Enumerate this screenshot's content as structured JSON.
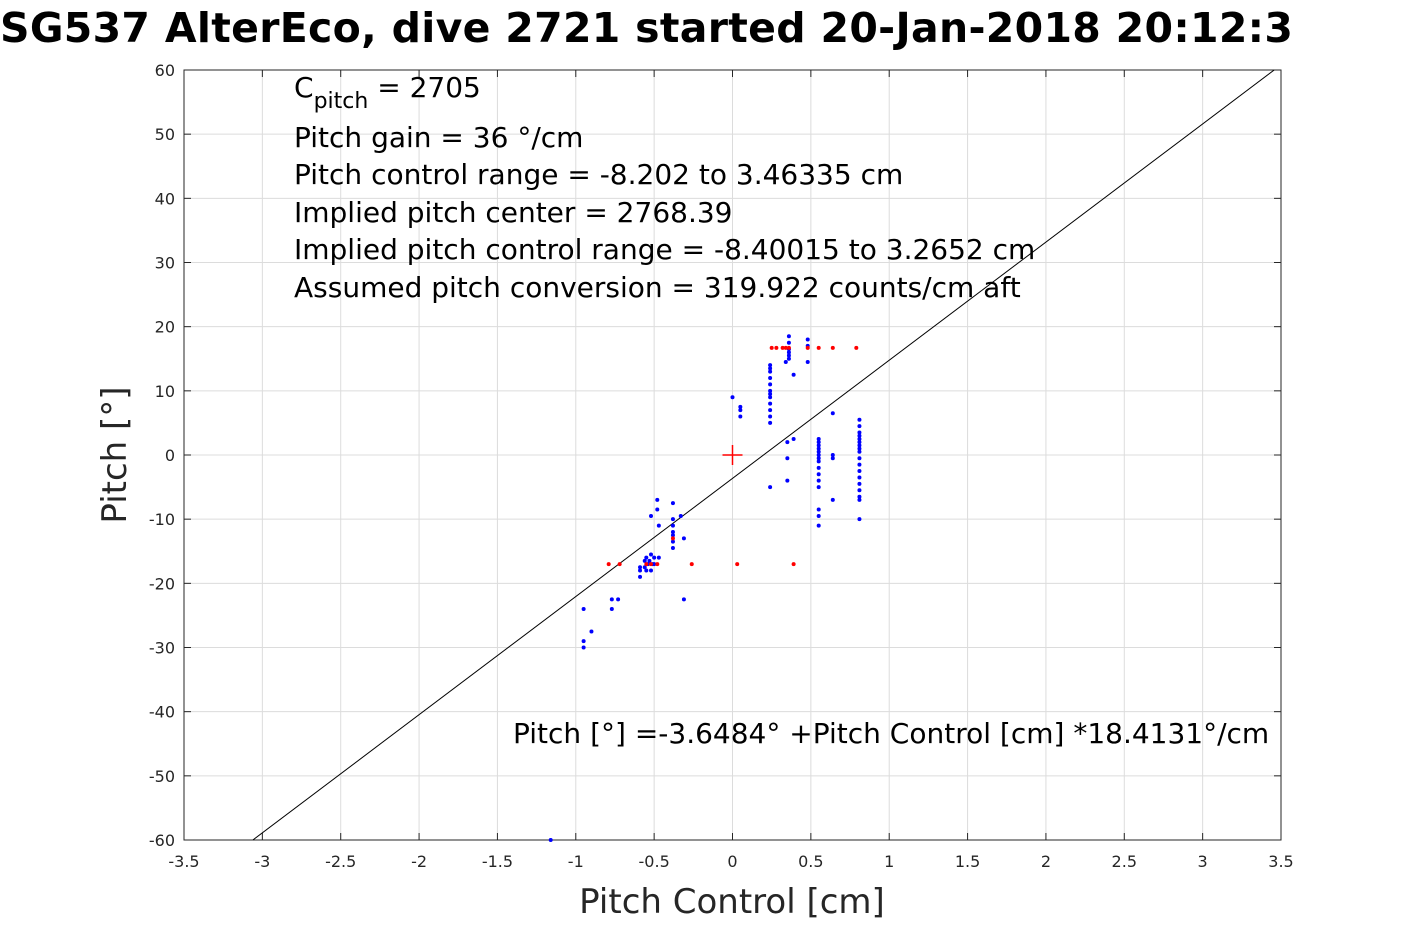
{
  "title": "SG537 AlterEco, dive 2721 started 20-Jan-2018 20:12:3",
  "annotations": {
    "cpitch_main": "C",
    "cpitch_sub": "pitch",
    "cpitch_value": " = 2705",
    "line2": "Pitch gain = 36 °/cm",
    "line3": "Pitch control range = -8.202 to 3.46335 cm",
    "line4": "Implied pitch center = 2768.39",
    "line5": "Implied pitch control range = -8.40015 to 3.2652 cm",
    "line6": "Assumed pitch conversion = 319.922 counts/cm aft"
  },
  "fit_equation": "Pitch [°] =-3.6484° +Pitch Control [cm] *18.4131°/cm",
  "chart_data": {
    "type": "scatter",
    "xlabel": "Pitch Control [cm]",
    "ylabel": "Pitch [°]",
    "xlim": [
      -3.5,
      3.5
    ],
    "ylim": [
      -60,
      60
    ],
    "xticks": [
      -3.5,
      -3,
      -2.5,
      -2,
      -1.5,
      -1,
      -0.5,
      0,
      0.5,
      1,
      1.5,
      2,
      2.5,
      3,
      3.5
    ],
    "xtick_labels": [
      "-3.5",
      "-3",
      "-2.5",
      "-2",
      "-1.5",
      "-1",
      "-0.5",
      "0",
      "0.5",
      "1",
      "1.5",
      "2",
      "2.5",
      "3",
      "3.5"
    ],
    "yticks": [
      -60,
      -50,
      -40,
      -30,
      -20,
      -10,
      0,
      10,
      20,
      30,
      40,
      50,
      60
    ],
    "ytick_labels": [
      "-60",
      "-50",
      "-40",
      "-30",
      "-20",
      "-10",
      "0",
      "10",
      "20",
      "30",
      "40",
      "50",
      "60"
    ],
    "grid": true,
    "fit_line": {
      "intercept": -3.6484,
      "slope": 18.4131
    },
    "center_marker": {
      "x": 0,
      "y": 0,
      "color": "#ff0000"
    },
    "series": [
      {
        "color": "#0000ff",
        "points": [
          [
            -1.16,
            -60
          ],
          [
            -0.95,
            -24
          ],
          [
            -0.95,
            -29
          ],
          [
            -0.95,
            -30
          ],
          [
            -0.9,
            -27.5
          ],
          [
            -0.77,
            -22.5
          ],
          [
            -0.77,
            -24
          ],
          [
            -0.73,
            -22.5
          ],
          [
            -0.59,
            -17.5
          ],
          [
            -0.59,
            -19
          ],
          [
            -0.59,
            -18
          ],
          [
            -0.56,
            -16.5
          ],
          [
            -0.56,
            -17.5
          ],
          [
            -0.55,
            -16
          ],
          [
            -0.55,
            -18
          ],
          [
            -0.54,
            -17
          ],
          [
            -0.53,
            -16.5
          ],
          [
            -0.52,
            -18
          ],
          [
            -0.52,
            -15.5
          ],
          [
            -0.51,
            -17
          ],
          [
            -0.5,
            -16
          ],
          [
            -0.5,
            -17
          ],
          [
            -0.52,
            -9.5
          ],
          [
            -0.48,
            -7
          ],
          [
            -0.48,
            -8.5
          ],
          [
            -0.47,
            -11
          ],
          [
            -0.47,
            -16
          ],
          [
            -0.38,
            -7.5
          ],
          [
            -0.38,
            -10
          ],
          [
            -0.38,
            -11
          ],
          [
            -0.38,
            -12
          ],
          [
            -0.38,
            -12.5
          ],
          [
            -0.38,
            -13.5
          ],
          [
            -0.38,
            -14.5
          ],
          [
            -0.33,
            -9.5
          ],
          [
            -0.31,
            -13
          ],
          [
            -0.31,
            -22.5
          ],
          [
            0,
            9
          ],
          [
            0.05,
            7.5
          ],
          [
            0.05,
            7
          ],
          [
            0.05,
            6
          ],
          [
            0.24,
            14
          ],
          [
            0.24,
            13.5
          ],
          [
            0.24,
            13
          ],
          [
            0.24,
            12
          ],
          [
            0.24,
            11
          ],
          [
            0.24,
            10
          ],
          [
            0.24,
            9.5
          ],
          [
            0.24,
            9
          ],
          [
            0.24,
            8
          ],
          [
            0.24,
            7
          ],
          [
            0.24,
            6
          ],
          [
            0.24,
            5
          ],
          [
            0.24,
            -5
          ],
          [
            0.34,
            14.5
          ],
          [
            0.35,
            -4
          ],
          [
            0.35,
            -0.5
          ],
          [
            0.35,
            2
          ],
          [
            0.36,
            18.5
          ],
          [
            0.36,
            17.5
          ],
          [
            0.36,
            16.5
          ],
          [
            0.36,
            16
          ],
          [
            0.36,
            15.5
          ],
          [
            0.36,
            15
          ],
          [
            0.39,
            12.5
          ],
          [
            0.39,
            2.5
          ],
          [
            0.48,
            18
          ],
          [
            0.48,
            17
          ],
          [
            0.48,
            14.5
          ],
          [
            0.55,
            2.5
          ],
          [
            0.55,
            2
          ],
          [
            0.55,
            1.5
          ],
          [
            0.55,
            1
          ],
          [
            0.55,
            0.5
          ],
          [
            0.55,
            0
          ],
          [
            0.55,
            -0.5
          ],
          [
            0.55,
            -1
          ],
          [
            0.55,
            -2
          ],
          [
            0.55,
            -3
          ],
          [
            0.55,
            -4
          ],
          [
            0.55,
            -5
          ],
          [
            0.55,
            -8.5
          ],
          [
            0.55,
            -9.5
          ],
          [
            0.55,
            -11
          ],
          [
            0.64,
            6.5
          ],
          [
            0.64,
            0
          ],
          [
            0.64,
            -0.5
          ],
          [
            0.64,
            -7
          ],
          [
            0.81,
            5.5
          ],
          [
            0.81,
            4.5
          ],
          [
            0.81,
            3.5
          ],
          [
            0.81,
            3
          ],
          [
            0.81,
            2.5
          ],
          [
            0.81,
            2
          ],
          [
            0.81,
            1.5
          ],
          [
            0.81,
            1
          ],
          [
            0.81,
            0.5
          ],
          [
            0.81,
            -0.5
          ],
          [
            0.81,
            -1.5
          ],
          [
            0.81,
            -2.5
          ],
          [
            0.81,
            -3.5
          ],
          [
            0.81,
            -4.5
          ],
          [
            0.81,
            -5.5
          ],
          [
            0.81,
            -6.5
          ],
          [
            0.81,
            -7
          ],
          [
            0.81,
            -10
          ]
        ]
      },
      {
        "color": "#ff0000",
        "points": [
          [
            -0.79,
            -17
          ],
          [
            -0.72,
            -17
          ],
          [
            -0.55,
            -17
          ],
          [
            -0.52,
            -17
          ],
          [
            -0.48,
            -17
          ],
          [
            -0.38,
            -13
          ],
          [
            -0.26,
            -17
          ],
          [
            0.03,
            -17
          ],
          [
            0.39,
            -17
          ],
          [
            0.25,
            16.7
          ],
          [
            0.28,
            16.7
          ],
          [
            0.32,
            16.7
          ],
          [
            0.34,
            16.7
          ],
          [
            0.36,
            16.7
          ],
          [
            0.48,
            16.7
          ],
          [
            0.55,
            16.7
          ],
          [
            0.64,
            16.7
          ],
          [
            0.79,
            16.7
          ]
        ]
      }
    ]
  }
}
